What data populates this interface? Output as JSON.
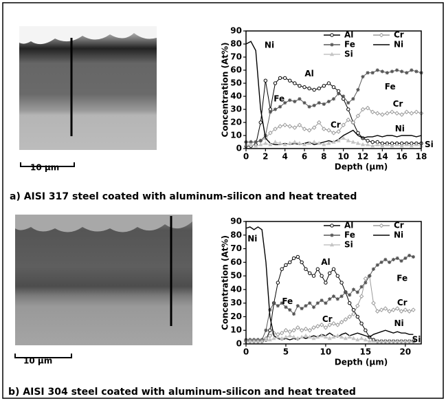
{
  "chart_data": [
    {
      "type": "line",
      "x_label": "Depth (µm)",
      "y_label": "Concentration (At%)",
      "legend": "upper right",
      "xlim": [
        0,
        18
      ],
      "xticks": [
        0,
        2,
        4,
        6,
        8,
        10,
        12,
        14,
        16,
        18
      ],
      "ylim": [
        0,
        90
      ],
      "yticks": [
        0,
        10,
        20,
        30,
        40,
        50,
        60,
        70,
        80,
        90
      ],
      "x": [
        0,
        0.5,
        1,
        1.5,
        2,
        2.5,
        3,
        3.5,
        4,
        4.5,
        5,
        5.5,
        6,
        6.5,
        7,
        7.5,
        8,
        8.5,
        9,
        9.5,
        10,
        10.5,
        11,
        11.5,
        12,
        12.5,
        13,
        13.5,
        14,
        14.5,
        15,
        15.5,
        16,
        16.5,
        17,
        17.5,
        18
      ],
      "series": [
        {
          "name": "Al",
          "color": "#000000",
          "marker": "circle",
          "values": [
            2,
            2,
            3,
            20,
            52,
            30,
            50,
            54,
            54,
            52,
            50,
            48,
            47,
            46,
            45,
            46,
            48,
            50,
            47,
            44,
            38,
            30,
            20,
            12,
            8,
            6,
            5,
            5,
            4,
            4,
            4,
            4,
            4,
            4,
            4,
            4,
            4
          ]
        },
        {
          "name": "Cr",
          "color": "#9a9a9a",
          "marker": "diamond",
          "values": [
            5,
            5,
            5,
            6,
            8,
            12,
            15,
            17,
            18,
            17,
            16,
            18,
            15,
            14,
            16,
            20,
            15,
            14,
            12,
            13,
            18,
            22,
            20,
            25,
            30,
            31,
            28,
            27,
            26,
            27,
            28,
            27,
            26,
            28,
            27,
            28,
            27
          ]
        },
        {
          "name": "Fe",
          "color": "#555555",
          "marker": "star",
          "values": [
            5,
            5,
            5,
            6,
            10,
            28,
            30,
            32,
            35,
            37,
            36,
            38,
            35,
            32,
            33,
            35,
            34,
            36,
            38,
            42,
            40,
            35,
            38,
            45,
            55,
            58,
            58,
            60,
            59,
            58,
            59,
            60,
            59,
            58,
            60,
            59,
            58
          ]
        },
        {
          "name": "Ni",
          "color": "#000000",
          "marker": "none",
          "values": [
            80,
            82,
            75,
            30,
            8,
            4,
            3,
            3,
            4,
            3,
            4,
            3,
            4,
            5,
            3,
            4,
            5,
            6,
            5,
            7,
            10,
            12,
            14,
            10,
            8,
            9,
            9,
            10,
            9,
            10,
            10,
            9,
            10,
            10,
            10,
            9,
            10
          ]
        },
        {
          "name": "Si",
          "color": "#c4c4c4",
          "marker": "triangle",
          "values": [
            3,
            3,
            2,
            3,
            4,
            3,
            5,
            4,
            3,
            4,
            5,
            4,
            3,
            4,
            5,
            4,
            3,
            4,
            5,
            6,
            8,
            6,
            5,
            4,
            3,
            3,
            2,
            3,
            2,
            3,
            2,
            3,
            2,
            3,
            2,
            3,
            2
          ]
        }
      ],
      "annotations": [
        {
          "text": "Ni",
          "x": 2.4,
          "y": 79
        },
        {
          "text": "Al",
          "x": 6.5,
          "y": 57
        },
        {
          "text": "Fe",
          "x": 3.4,
          "y": 38
        },
        {
          "text": "Fe",
          "x": 14.8,
          "y": 47
        },
        {
          "text": "Cr",
          "x": 9.2,
          "y": 18
        },
        {
          "text": "Cr",
          "x": 15.6,
          "y": 34
        },
        {
          "text": "Ni",
          "x": 15.8,
          "y": 15
        },
        {
          "text": "Si",
          "x": 18.8,
          "y": 3
        }
      ]
    },
    {
      "type": "line",
      "x_label": "Depth (µm)",
      "y_label": "Concentration (At%)",
      "legend": "upper right",
      "xlim": [
        0,
        22
      ],
      "xticks": [
        0,
        5,
        10,
        15,
        20
      ],
      "ylim": [
        0,
        90
      ],
      "yticks": [
        0,
        10,
        20,
        30,
        40,
        50,
        60,
        70,
        80,
        90
      ],
      "x": [
        0,
        0.5,
        1,
        1.5,
        2,
        2.5,
        3,
        3.5,
        4,
        4.5,
        5,
        5.5,
        6,
        6.5,
        7,
        7.5,
        8,
        8.5,
        9,
        9.5,
        10,
        10.5,
        11,
        11.5,
        12,
        12.5,
        13,
        13.5,
        14,
        14.5,
        15,
        15.5,
        16,
        16.5,
        17,
        17.5,
        18,
        18.5,
        19,
        19.5,
        20,
        20.5,
        21
      ],
      "series": [
        {
          "name": "Al",
          "color": "#000000",
          "marker": "circle",
          "values": [
            2,
            2,
            2,
            2,
            2,
            3,
            10,
            30,
            45,
            55,
            58,
            60,
            63,
            64,
            60,
            55,
            52,
            50,
            55,
            50,
            45,
            52,
            55,
            50,
            45,
            38,
            30,
            25,
            20,
            15,
            10,
            5,
            3,
            2,
            2,
            2,
            2,
            2,
            2,
            2,
            2,
            2,
            2
          ]
        },
        {
          "name": "Cr",
          "color": "#9a9a9a",
          "marker": "diamond",
          "values": [
            3,
            3,
            3,
            3,
            3,
            4,
            6,
            8,
            7,
            8,
            10,
            9,
            10,
            12,
            10,
            11,
            10,
            12,
            13,
            14,
            12,
            14,
            15,
            14,
            16,
            18,
            20,
            22,
            28,
            35,
            48,
            50,
            30,
            24,
            25,
            26,
            24,
            25,
            26,
            24,
            25,
            24,
            25
          ]
        },
        {
          "name": "Fe",
          "color": "#555555",
          "marker": "star",
          "values": [
            3,
            3,
            3,
            3,
            3,
            10,
            25,
            30,
            28,
            30,
            27,
            25,
            22,
            28,
            26,
            28,
            30,
            27,
            30,
            32,
            30,
            33,
            35,
            33,
            35,
            38,
            36,
            40,
            38,
            42,
            45,
            50,
            55,
            58,
            60,
            62,
            60,
            62,
            63,
            61,
            63,
            65,
            64
          ]
        },
        {
          "name": "Ni",
          "color": "#000000",
          "marker": "none",
          "values": [
            85,
            86,
            84,
            86,
            84,
            60,
            20,
            6,
            4,
            3,
            4,
            3,
            4,
            3,
            5,
            4,
            5,
            6,
            5,
            7,
            6,
            8,
            6,
            5,
            7,
            8,
            6,
            7,
            8,
            7,
            6,
            5,
            7,
            8,
            9,
            10,
            9,
            8,
            9,
            8,
            8,
            7,
            7
          ]
        },
        {
          "name": "Si",
          "color": "#c4c4c4",
          "marker": "triangle",
          "values": [
            2,
            2,
            2,
            2,
            2,
            3,
            3,
            4,
            5,
            4,
            5,
            6,
            5,
            4,
            5,
            6,
            5,
            4,
            5,
            6,
            5,
            4,
            5,
            6,
            5,
            4,
            5,
            4,
            3,
            4,
            3,
            2,
            2,
            2,
            2,
            2,
            2,
            2,
            2,
            2,
            2,
            2,
            2
          ]
        }
      ],
      "annotations": [
        {
          "text": "Ni",
          "x": 0.8,
          "y": 77
        },
        {
          "text": "Al",
          "x": 10,
          "y": 60
        },
        {
          "text": "Fe",
          "x": 5.2,
          "y": 31
        },
        {
          "text": "Fe",
          "x": 19.6,
          "y": 48
        },
        {
          "text": "Cr",
          "x": 10.2,
          "y": 18
        },
        {
          "text": "Cr",
          "x": 19.6,
          "y": 30
        },
        {
          "text": "Ni",
          "x": 19.2,
          "y": 15
        },
        {
          "text": "Si",
          "x": 21.4,
          "y": 3
        }
      ]
    }
  ],
  "panels": [
    {
      "scale_bar": "10 µm",
      "caption": "a) AISI 317 steel coated with aluminum-silicon and heat treated"
    },
    {
      "scale_bar": "10 µm",
      "caption": "b) AISI 304 steel coated with aluminum-silicon and heat treated"
    }
  ]
}
